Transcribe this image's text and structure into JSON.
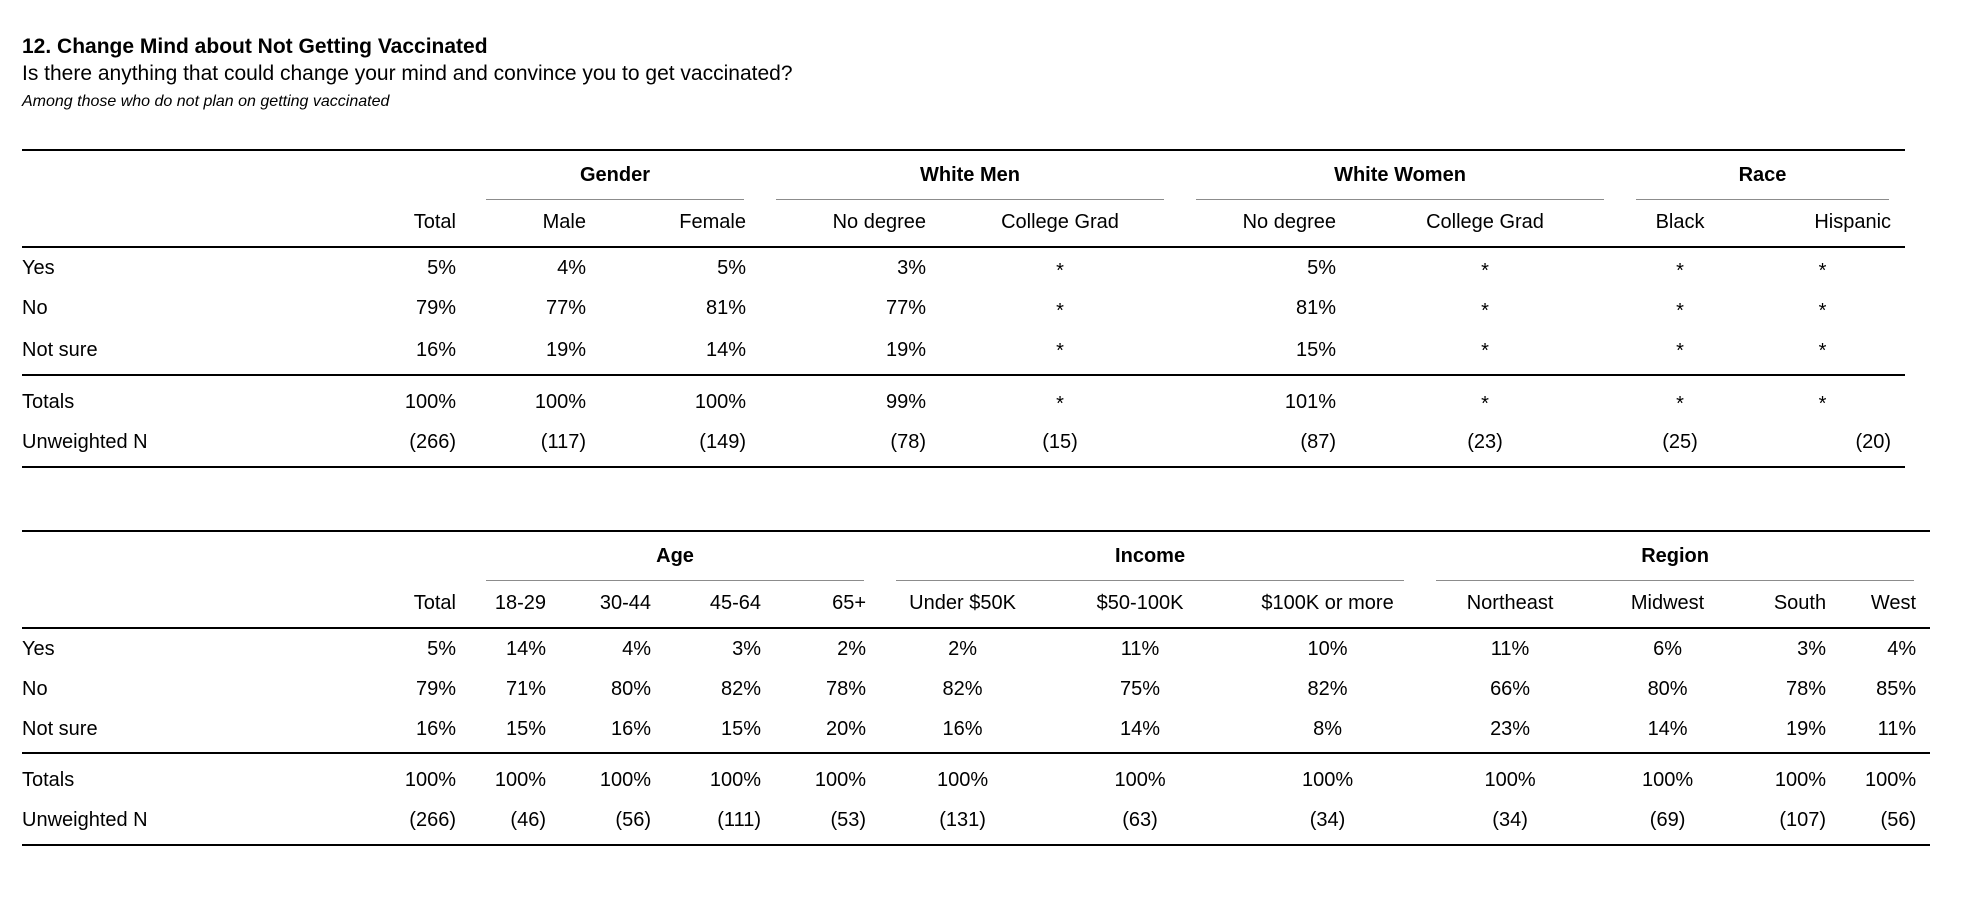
{
  "colors": {
    "background": "#ffffff",
    "text": "#000000",
    "rule": "#000000",
    "group_underline": "#8c8c8c"
  },
  "header": {
    "title": "12. Change Mind about Not Getting Vaccinated",
    "question": "Is there anything that could change your mind and convince you to get vaccinated?",
    "note": "Among those who do not plan on getting vaccinated"
  },
  "table1": {
    "groups": [
      "Gender",
      "White Men",
      "White Women",
      "Race"
    ],
    "columns": [
      "Total",
      "Male",
      "Female",
      "No degree",
      "College Grad",
      "No degree",
      "College Grad",
      "Black",
      "Hispanic"
    ],
    "rows": [
      {
        "label": "Yes",
        "values": [
          "5%",
          "4%",
          "5%",
          "3%",
          "*",
          "5%",
          "*",
          "*",
          "*"
        ]
      },
      {
        "label": "No",
        "values": [
          "79%",
          "77%",
          "81%",
          "77%",
          "*",
          "81%",
          "*",
          "*",
          "*"
        ]
      },
      {
        "label": "Not sure",
        "values": [
          "16%",
          "19%",
          "14%",
          "19%",
          "*",
          "15%",
          "*",
          "*",
          "*"
        ]
      }
    ],
    "summary_rows": [
      {
        "label": "Totals",
        "values": [
          "100%",
          "100%",
          "100%",
          "99%",
          "*",
          "101%",
          "*",
          "*",
          "*"
        ]
      },
      {
        "label": "Unweighted N",
        "values": [
          "(266)",
          "(117)",
          "(149)",
          "(78)",
          "(15)",
          "(87)",
          "(23)",
          "(25)",
          "(20)"
        ]
      }
    ]
  },
  "table2": {
    "groups": [
      "Age",
      "Income",
      "Region"
    ],
    "columns": [
      "Total",
      "18-29",
      "30-44",
      "45-64",
      "65+",
      "Under $50K",
      "$50-100K",
      "$100K or more",
      "Northeast",
      "Midwest",
      "South",
      "West"
    ],
    "rows": [
      {
        "label": "Yes",
        "values": [
          "5%",
          "14%",
          "4%",
          "3%",
          "2%",
          "2%",
          "11%",
          "10%",
          "11%",
          "6%",
          "3%",
          "4%"
        ]
      },
      {
        "label": "No",
        "values": [
          "79%",
          "71%",
          "80%",
          "82%",
          "78%",
          "82%",
          "75%",
          "82%",
          "66%",
          "80%",
          "78%",
          "85%"
        ]
      },
      {
        "label": "Not sure",
        "values": [
          "16%",
          "15%",
          "16%",
          "15%",
          "20%",
          "16%",
          "14%",
          "8%",
          "23%",
          "14%",
          "19%",
          "11%"
        ]
      }
    ],
    "summary_rows": [
      {
        "label": "Totals",
        "values": [
          "100%",
          "100%",
          "100%",
          "100%",
          "100%",
          "100%",
          "100%",
          "100%",
          "100%",
          "100%",
          "100%",
          "100%"
        ]
      },
      {
        "label": "Unweighted N",
        "values": [
          "(266)",
          "(46)",
          "(56)",
          "(111)",
          "(53)",
          "(131)",
          "(63)",
          "(34)",
          "(34)",
          "(69)",
          "(107)",
          "(56)"
        ]
      }
    ]
  }
}
